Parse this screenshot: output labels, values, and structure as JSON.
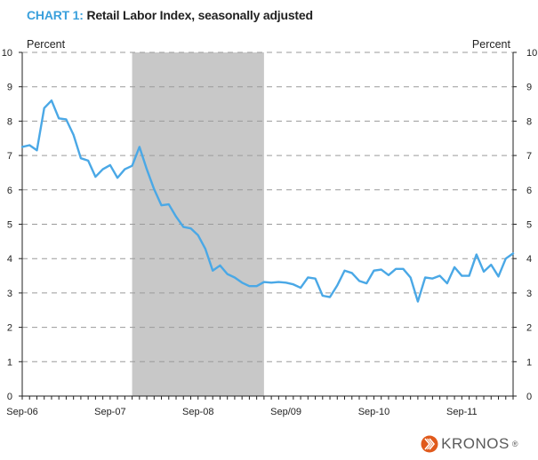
{
  "title": {
    "prefix": "CHART 1:",
    "text": "Retail Labor Index, seasonally adjusted"
  },
  "brand": {
    "name": "KRONOS",
    "trademark": "®",
    "color": "#e05a1c"
  },
  "chart_data": {
    "type": "line",
    "title": "Retail Labor Index, seasonally adjusted",
    "left_unit_label": "Percent",
    "right_unit_label": "Percent",
    "ylim": [
      0,
      10
    ],
    "y_ticks": [
      0,
      1,
      2,
      3,
      4,
      5,
      6,
      7,
      8,
      9,
      10
    ],
    "x_tick_labels": [
      "Sep-06",
      "Sep-07",
      "Sep-08",
      "Sep/09",
      "Sep-10",
      "Sep-11"
    ],
    "x_start": "Sep-06",
    "x_end": "Feb-12",
    "grid": "horizontal dashed",
    "recession_shading": {
      "from": "Dec-07",
      "to": "Jun-09",
      "color": "#c8c8c8"
    },
    "series": [
      {
        "color": "#4aa8e6",
        "values": [
          7.25,
          7.3,
          7.15,
          8.38,
          8.6,
          8.08,
          8.05,
          7.6,
          6.92,
          6.85,
          6.38,
          6.6,
          6.72,
          6.35,
          6.6,
          6.7,
          7.25,
          6.6,
          6.02,
          5.55,
          5.58,
          5.22,
          4.92,
          4.88,
          4.68,
          4.28,
          3.65,
          3.8,
          3.55,
          3.45,
          3.3,
          3.2,
          3.2,
          3.32,
          3.3,
          3.32,
          3.3,
          3.25,
          3.15,
          3.45,
          3.42,
          2.92,
          2.88,
          3.22,
          3.65,
          3.58,
          3.35,
          3.28,
          3.65,
          3.68,
          3.52,
          3.7,
          3.7,
          3.45,
          2.75,
          3.45,
          3.42,
          3.5,
          3.28,
          3.75,
          3.5,
          3.5,
          4.12,
          3.62,
          3.82,
          3.48,
          4.0,
          4.15
        ]
      }
    ]
  }
}
